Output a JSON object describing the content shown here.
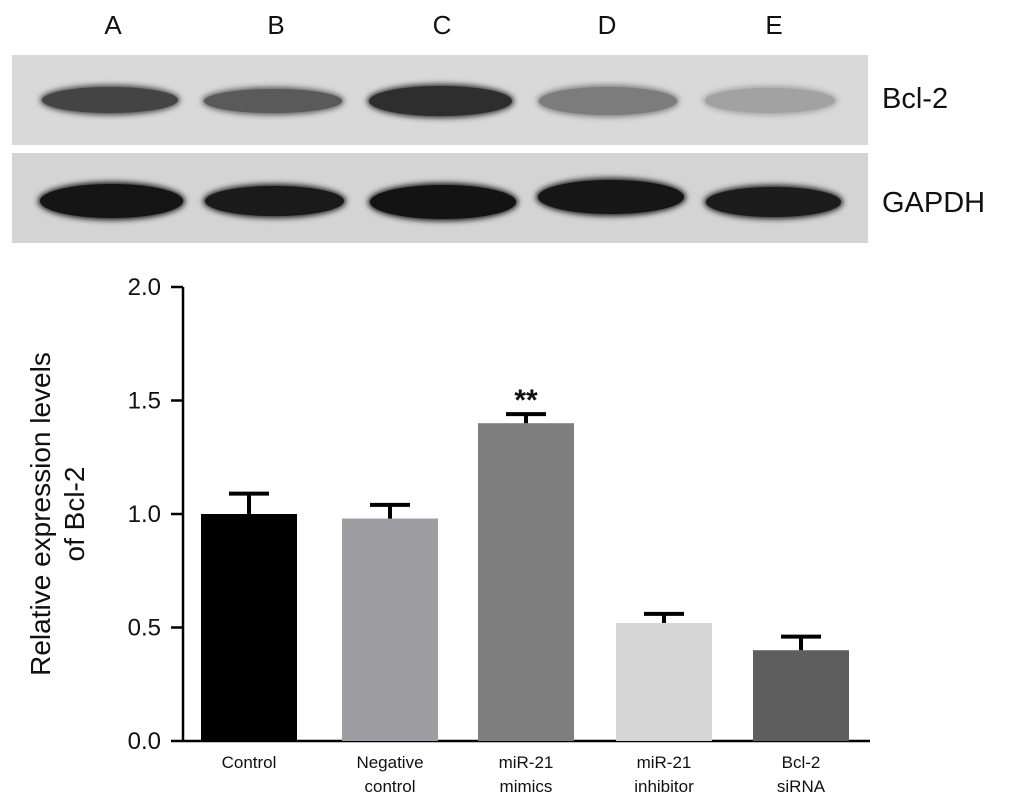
{
  "blot": {
    "lanes": [
      "A",
      "B",
      "C",
      "D",
      "E"
    ],
    "rows": [
      {
        "protein": "Bcl-2",
        "band_colors": [
          "#444444",
          "#5a5a5a",
          "#2e2e2e",
          "#7c7c7c",
          "#a2a2a2"
        ]
      },
      {
        "protein": "GAPDH",
        "band_colors": [
          "#151515",
          "#1a1a1a",
          "#131313",
          "#161616",
          "#1c1c1c"
        ]
      }
    ]
  },
  "chart_data": {
    "type": "bar",
    "categories": [
      [
        "Control"
      ],
      [
        "Negative",
        "control"
      ],
      [
        "miR-21",
        "mimics"
      ],
      [
        "miR-21",
        "inhibitor"
      ],
      [
        "Bcl-2",
        "siRNA"
      ]
    ],
    "values": [
      1.0,
      0.98,
      1.4,
      0.52,
      0.4
    ],
    "errors": [
      0.09,
      0.06,
      0.04,
      0.04,
      0.06
    ],
    "colors": [
      "#000000",
      "#9d9da2",
      "#7f7f7f",
      "#d6d6d6",
      "#5e5e5e"
    ],
    "significance": [
      "",
      "",
      "**",
      "",
      ""
    ],
    "ylabel": [
      "Relative expression levels",
      "of Bcl-2"
    ],
    "ylim": [
      0,
      2.0
    ],
    "yticks": [
      "0.0",
      "0.5",
      "1.0",
      "1.5",
      "2.0"
    ],
    "grid": false
  }
}
